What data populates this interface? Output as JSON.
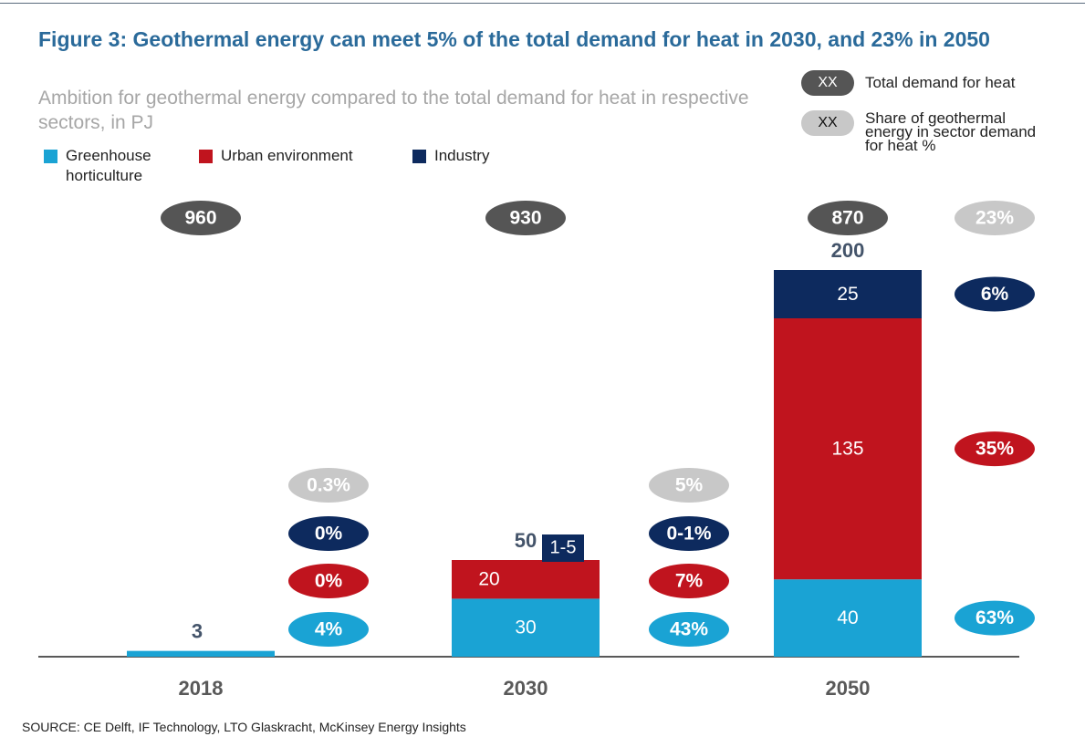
{
  "chart_data": {
    "type": "bar",
    "stacked": true,
    "title": "Figure 3: Geothermal energy can meet 5% of the total demand for heat in 2030, and 23% in 2050",
    "subtitle": "Ambition for geothermal energy compared to the total demand for heat in respective sectors, in PJ",
    "categories": [
      "2018",
      "2030",
      "2050"
    ],
    "series": [
      {
        "name": "Greenhouse horticulture",
        "color": "#1aa3d4",
        "values": [
          3,
          30,
          40
        ],
        "share_values": [
          4,
          43,
          63
        ],
        "share_labels": [
          "4%",
          "43%",
          "63%"
        ]
      },
      {
        "name": "Urban environment",
        "color": "#c0141e",
        "values": [
          null,
          20,
          135
        ],
        "share_values": [
          0,
          7,
          35
        ],
        "share_labels": [
          "0%",
          "7%",
          "35%"
        ]
      },
      {
        "name": "Industry",
        "color": "#0d2a5e",
        "values": [
          null,
          null,
          25
        ],
        "range_labels": [
          null,
          "1-5",
          null
        ],
        "share_values": [
          0,
          null,
          6
        ],
        "share_labels": [
          "0%",
          "0-1%",
          "6%"
        ]
      }
    ],
    "totals": [
      3,
      50,
      200
    ],
    "total_demand": {
      "name": "Total demand for heat",
      "key_label": "XX",
      "color": "#555555",
      "values": [
        960,
        930,
        870
      ]
    },
    "total_share": {
      "name": "Share of geothermal energy in sector demand for heat %",
      "key_label": "XX",
      "color": "#c8c8c8",
      "values": [
        0.3,
        5,
        23
      ],
      "value_labels": [
        "0.3%",
        "5%",
        "23%"
      ]
    },
    "source": "SOURCE: CE Delft, IF Technology, LTO Glaskracht, McKinsey Energy Insights"
  }
}
